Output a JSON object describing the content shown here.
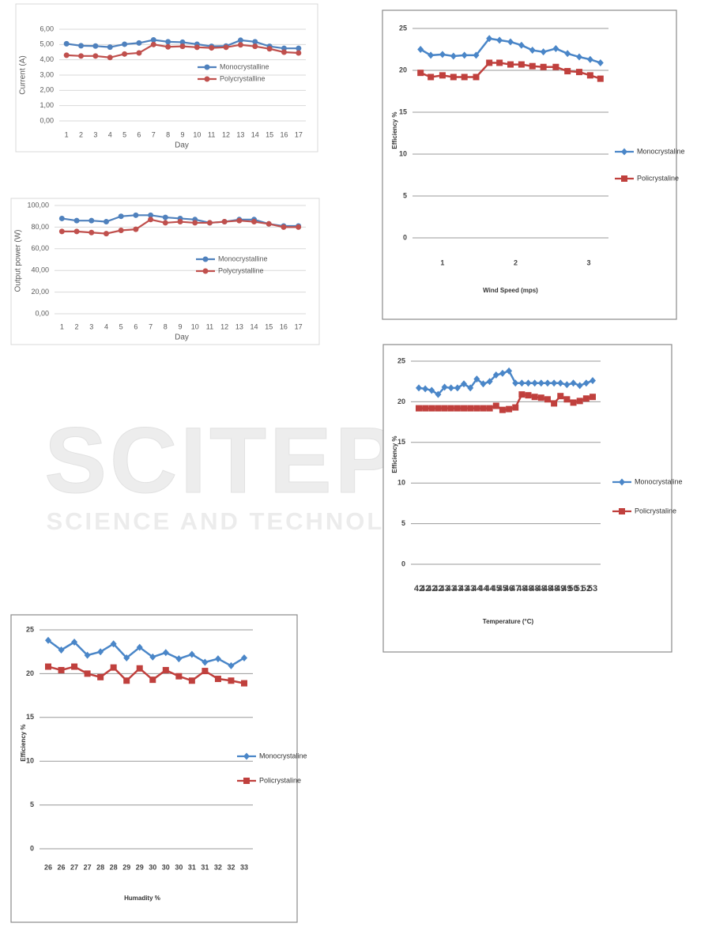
{
  "chart_data": [
    {
      "type": "line",
      "ylabel": "Current (A)",
      "xlabel": "Day",
      "categories": [
        "1",
        "2",
        "3",
        "4",
        "5",
        "6",
        "7",
        "8",
        "9",
        "10",
        "11",
        "12",
        "13",
        "14",
        "15",
        "16",
        "17"
      ],
      "series": [
        {
          "name": "Monocrystalline",
          "color": "#4f81bd",
          "marker": "circle",
          "values": [
            5.05,
            4.92,
            4.9,
            4.83,
            5.02,
            5.1,
            5.3,
            5.18,
            5.15,
            5.02,
            4.88,
            4.9,
            5.28,
            5.18,
            4.88,
            4.75,
            4.75
          ]
        },
        {
          "name": "Polycrystalline",
          "color": "#c0504d",
          "marker": "circle",
          "values": [
            4.3,
            4.25,
            4.25,
            4.15,
            4.38,
            4.45,
            5.0,
            4.85,
            4.88,
            4.82,
            4.78,
            4.82,
            4.98,
            4.88,
            4.72,
            4.5,
            4.45
          ]
        }
      ],
      "ylim": [
        0,
        6
      ],
      "yticks": [
        {
          "value": 0,
          "label": "0,00"
        },
        {
          "value": 1,
          "label": "1,00"
        },
        {
          "value": 2,
          "label": "2,00"
        },
        {
          "value": 3,
          "label": "3,00"
        },
        {
          "value": 4,
          "label": "4,00"
        },
        {
          "value": 5,
          "label": "5,00"
        },
        {
          "value": 6,
          "label": "6,00"
        }
      ],
      "grid": true
    },
    {
      "type": "line",
      "ylabel": "Output power (W)",
      "xlabel": "Day",
      "categories": [
        "1",
        "2",
        "3",
        "4",
        "5",
        "6",
        "7",
        "8",
        "9",
        "10",
        "11",
        "12",
        "13",
        "14",
        "15",
        "16",
        "17"
      ],
      "series": [
        {
          "name": "Monocrystalline",
          "color": "#4f81bd",
          "marker": "circle",
          "values": [
            88,
            86,
            86,
            85,
            90,
            91,
            91,
            89,
            88,
            87,
            84,
            85,
            87,
            87,
            83,
            81,
            81
          ]
        },
        {
          "name": "Polycrystalline",
          "color": "#c0504d",
          "marker": "circle",
          "values": [
            76,
            76,
            75,
            74,
            77,
            78,
            87,
            84,
            85,
            84,
            84,
            85,
            86,
            85,
            83,
            80,
            80
          ]
        }
      ],
      "ylim": [
        0,
        100
      ],
      "yticks": [
        {
          "value": 0,
          "label": "0,00"
        },
        {
          "value": 20,
          "label": "20,00"
        },
        {
          "value": 40,
          "label": "40,00"
        },
        {
          "value": 60,
          "label": "60,00"
        },
        {
          "value": 80,
          "label": "80,00"
        },
        {
          "value": 100,
          "label": "100,00"
        }
      ],
      "grid": true
    },
    {
      "type": "line",
      "ylabel": "Efficiency %",
      "xlabel": "Wind Speed (mps)",
      "x": [
        0.7,
        0.84,
        1.0,
        1.15,
        1.3,
        1.46,
        1.64,
        1.78,
        1.93,
        2.08,
        2.23,
        2.38,
        2.55,
        2.71,
        2.87,
        3.02,
        3.16
      ],
      "series": [
        {
          "name": "Monocrystaline",
          "color": "#4a86c8",
          "marker": "plus",
          "values": [
            22.5,
            21.8,
            21.9,
            21.7,
            21.8,
            21.8,
            23.8,
            23.6,
            23.4,
            23.0,
            22.4,
            22.2,
            22.6,
            22.0,
            21.6,
            21.3,
            20.9
          ]
        },
        {
          "name": "Policrystaline",
          "color": "#c0403d",
          "marker": "square",
          "values": [
            19.7,
            19.2,
            19.4,
            19.2,
            19.2,
            19.2,
            20.9,
            20.9,
            20.7,
            20.7,
            20.5,
            20.4,
            20.4,
            19.9,
            19.8,
            19.4,
            19.0
          ]
        }
      ],
      "xlim": [
        0.59,
        3.27
      ],
      "xticks": [
        1,
        2,
        3
      ],
      "ylim": [
        0,
        25
      ],
      "yticks": [
        0,
        5,
        10,
        15,
        20,
        25
      ],
      "grid": true
    },
    {
      "type": "line",
      "ylabel": "Efficiency %",
      "xlabel": "Temperature (°C)",
      "categories": [
        "42",
        "42",
        "42",
        "42",
        "43",
        "43",
        "43",
        "43",
        "43",
        "44",
        "44",
        "44",
        "45",
        "45",
        "46",
        "47",
        "48",
        "48",
        "48",
        "48",
        "48",
        "48",
        "49",
        "49",
        "50",
        "51",
        "52",
        "53"
      ],
      "series": [
        {
          "name": "Monocrystaline",
          "color": "#4a86c8",
          "marker": "plus",
          "values": [
            21.7,
            21.6,
            21.4,
            20.9,
            21.8,
            21.7,
            21.7,
            22.2,
            21.7,
            22.8,
            22.2,
            22.5,
            23.3,
            23.5,
            23.8,
            22.3,
            22.3,
            22.3,
            22.3,
            22.3,
            22.3,
            22.3,
            22.3,
            22.1,
            22.3,
            22.0,
            22.3,
            22.6
          ]
        },
        {
          "name": "Policrystaline",
          "color": "#c0403d",
          "marker": "square",
          "values": [
            19.2,
            19.2,
            19.2,
            19.2,
            19.2,
            19.2,
            19.2,
            19.2,
            19.2,
            19.2,
            19.2,
            19.2,
            19.5,
            19.0,
            19.1,
            19.3,
            20.9,
            20.8,
            20.6,
            20.5,
            20.3,
            19.8,
            20.7,
            20.3,
            19.9,
            20.1,
            20.4,
            20.6
          ]
        }
      ],
      "ylim": [
        0,
        25
      ],
      "yticks": [
        0,
        5,
        10,
        15,
        20,
        25
      ],
      "grid": true
    },
    {
      "type": "line",
      "ylabel": "Efficiency %",
      "xlabel": "Humadity %",
      "categories": [
        "26",
        "26",
        "27",
        "27",
        "28",
        "28",
        "29",
        "29",
        "30",
        "30",
        "30",
        "31",
        "31",
        "32",
        "32",
        "33"
      ],
      "series": [
        {
          "name": "Monocrystaline",
          "color": "#4a86c8",
          "marker": "plus",
          "values": [
            23.8,
            22.7,
            23.6,
            22.1,
            22.5,
            23.4,
            21.8,
            23.0,
            21.9,
            22.4,
            21.7,
            22.2,
            21.3,
            21.7,
            20.9,
            21.8
          ]
        },
        {
          "name": "Policrystaline",
          "color": "#c0403d",
          "marker": "square",
          "values": [
            20.8,
            20.4,
            20.8,
            20.0,
            19.6,
            20.7,
            19.2,
            20.6,
            19.3,
            20.4,
            19.7,
            19.2,
            20.3,
            19.4,
            19.2,
            18.9
          ]
        }
      ],
      "ylim": [
        0,
        25
      ],
      "yticks": [
        0,
        5,
        10,
        15,
        20,
        25
      ],
      "grid": true
    }
  ],
  "watermark": {
    "title": "SCITEPRESS",
    "subtitle": "SCIENCE AND TECHNOLOGY PUBLICATIONS"
  }
}
